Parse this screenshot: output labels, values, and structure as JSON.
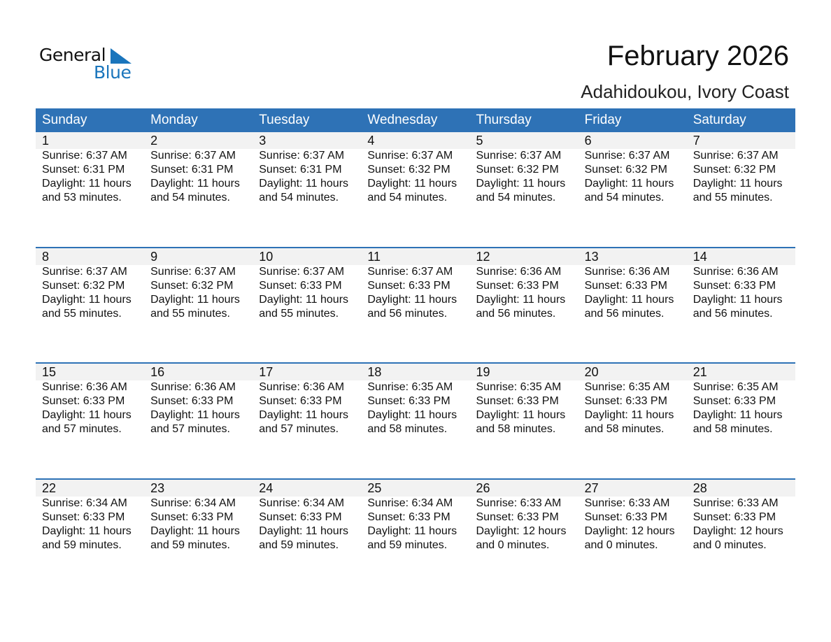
{
  "logo": {
    "word1": "General",
    "word2": "Blue"
  },
  "title": "February 2026",
  "subtitle": "Adahidoukou, Ivory Coast",
  "colors": {
    "header": "#2e72b6",
    "logo_blue": "#1a75bc",
    "strip": "#f2f2f2"
  },
  "weekdays": [
    "Sunday",
    "Monday",
    "Tuesday",
    "Wednesday",
    "Thursday",
    "Friday",
    "Saturday"
  ],
  "days": [
    {
      "n": "1",
      "rise": "Sunrise: 6:37 AM",
      "set": "Sunset: 6:31 PM",
      "d1": "Daylight: 11 hours",
      "d2": "and 53 minutes."
    },
    {
      "n": "2",
      "rise": "Sunrise: 6:37 AM",
      "set": "Sunset: 6:31 PM",
      "d1": "Daylight: 11 hours",
      "d2": "and 54 minutes."
    },
    {
      "n": "3",
      "rise": "Sunrise: 6:37 AM",
      "set": "Sunset: 6:31 PM",
      "d1": "Daylight: 11 hours",
      "d2": "and 54 minutes."
    },
    {
      "n": "4",
      "rise": "Sunrise: 6:37 AM",
      "set": "Sunset: 6:32 PM",
      "d1": "Daylight: 11 hours",
      "d2": "and 54 minutes."
    },
    {
      "n": "5",
      "rise": "Sunrise: 6:37 AM",
      "set": "Sunset: 6:32 PM",
      "d1": "Daylight: 11 hours",
      "d2": "and 54 minutes."
    },
    {
      "n": "6",
      "rise": "Sunrise: 6:37 AM",
      "set": "Sunset: 6:32 PM",
      "d1": "Daylight: 11 hours",
      "d2": "and 54 minutes."
    },
    {
      "n": "7",
      "rise": "Sunrise: 6:37 AM",
      "set": "Sunset: 6:32 PM",
      "d1": "Daylight: 11 hours",
      "d2": "and 55 minutes."
    },
    {
      "n": "8",
      "rise": "Sunrise: 6:37 AM",
      "set": "Sunset: 6:32 PM",
      "d1": "Daylight: 11 hours",
      "d2": "and 55 minutes."
    },
    {
      "n": "9",
      "rise": "Sunrise: 6:37 AM",
      "set": "Sunset: 6:32 PM",
      "d1": "Daylight: 11 hours",
      "d2": "and 55 minutes."
    },
    {
      "n": "10",
      "rise": "Sunrise: 6:37 AM",
      "set": "Sunset: 6:33 PM",
      "d1": "Daylight: 11 hours",
      "d2": "and 55 minutes."
    },
    {
      "n": "11",
      "rise": "Sunrise: 6:37 AM",
      "set": "Sunset: 6:33 PM",
      "d1": "Daylight: 11 hours",
      "d2": "and 56 minutes."
    },
    {
      "n": "12",
      "rise": "Sunrise: 6:36 AM",
      "set": "Sunset: 6:33 PM",
      "d1": "Daylight: 11 hours",
      "d2": "and 56 minutes."
    },
    {
      "n": "13",
      "rise": "Sunrise: 6:36 AM",
      "set": "Sunset: 6:33 PM",
      "d1": "Daylight: 11 hours",
      "d2": "and 56 minutes."
    },
    {
      "n": "14",
      "rise": "Sunrise: 6:36 AM",
      "set": "Sunset: 6:33 PM",
      "d1": "Daylight: 11 hours",
      "d2": "and 56 minutes."
    },
    {
      "n": "15",
      "rise": "Sunrise: 6:36 AM",
      "set": "Sunset: 6:33 PM",
      "d1": "Daylight: 11 hours",
      "d2": "and 57 minutes."
    },
    {
      "n": "16",
      "rise": "Sunrise: 6:36 AM",
      "set": "Sunset: 6:33 PM",
      "d1": "Daylight: 11 hours",
      "d2": "and 57 minutes."
    },
    {
      "n": "17",
      "rise": "Sunrise: 6:36 AM",
      "set": "Sunset: 6:33 PM",
      "d1": "Daylight: 11 hours",
      "d2": "and 57 minutes."
    },
    {
      "n": "18",
      "rise": "Sunrise: 6:35 AM",
      "set": "Sunset: 6:33 PM",
      "d1": "Daylight: 11 hours",
      "d2": "and 58 minutes."
    },
    {
      "n": "19",
      "rise": "Sunrise: 6:35 AM",
      "set": "Sunset: 6:33 PM",
      "d1": "Daylight: 11 hours",
      "d2": "and 58 minutes."
    },
    {
      "n": "20",
      "rise": "Sunrise: 6:35 AM",
      "set": "Sunset: 6:33 PM",
      "d1": "Daylight: 11 hours",
      "d2": "and 58 minutes."
    },
    {
      "n": "21",
      "rise": "Sunrise: 6:35 AM",
      "set": "Sunset: 6:33 PM",
      "d1": "Daylight: 11 hours",
      "d2": "and 58 minutes."
    },
    {
      "n": "22",
      "rise": "Sunrise: 6:34 AM",
      "set": "Sunset: 6:33 PM",
      "d1": "Daylight: 11 hours",
      "d2": "and 59 minutes."
    },
    {
      "n": "23",
      "rise": "Sunrise: 6:34 AM",
      "set": "Sunset: 6:33 PM",
      "d1": "Daylight: 11 hours",
      "d2": "and 59 minutes."
    },
    {
      "n": "24",
      "rise": "Sunrise: 6:34 AM",
      "set": "Sunset: 6:33 PM",
      "d1": "Daylight: 11 hours",
      "d2": "and 59 minutes."
    },
    {
      "n": "25",
      "rise": "Sunrise: 6:34 AM",
      "set": "Sunset: 6:33 PM",
      "d1": "Daylight: 11 hours",
      "d2": "and 59 minutes."
    },
    {
      "n": "26",
      "rise": "Sunrise: 6:33 AM",
      "set": "Sunset: 6:33 PM",
      "d1": "Daylight: 12 hours",
      "d2": "and 0 minutes."
    },
    {
      "n": "27",
      "rise": "Sunrise: 6:33 AM",
      "set": "Sunset: 6:33 PM",
      "d1": "Daylight: 12 hours",
      "d2": "and 0 minutes."
    },
    {
      "n": "28",
      "rise": "Sunrise: 6:33 AM",
      "set": "Sunset: 6:33 PM",
      "d1": "Daylight: 12 hours",
      "d2": "and 0 minutes."
    }
  ]
}
